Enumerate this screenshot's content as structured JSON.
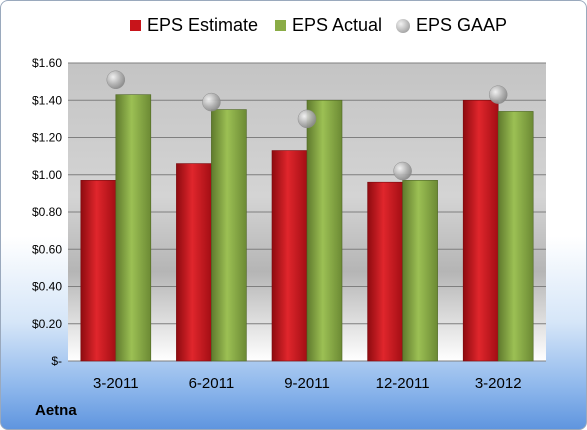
{
  "company_label": "Aetna",
  "colors": {
    "estimate": "#c8141a",
    "actual": "#8aac46",
    "gaap": "#a8a8a8"
  },
  "chart_data": {
    "type": "bar",
    "categories": [
      "3-2011",
      "6-2011",
      "9-2011",
      "12-2011",
      "3-2012"
    ],
    "series": [
      {
        "name": "EPS Estimate",
        "kind": "bar",
        "values": [
          0.97,
          1.06,
          1.13,
          0.96,
          1.4
        ]
      },
      {
        "name": "EPS Actual",
        "kind": "bar",
        "values": [
          1.43,
          1.35,
          1.4,
          0.97,
          1.34
        ]
      },
      {
        "name": "EPS GAAP",
        "kind": "bubble",
        "values": [
          1.51,
          1.39,
          1.3,
          1.02,
          1.43
        ]
      }
    ],
    "ylim": [
      0,
      1.6
    ],
    "yticks": [
      0,
      0.2,
      0.4,
      0.6,
      0.8,
      1.0,
      1.2,
      1.4,
      1.6
    ],
    "ytick_labels": [
      "$-",
      "$0.20",
      "$0.40",
      "$0.60",
      "$0.80",
      "$1.00",
      "$1.20",
      "$1.40",
      "$1.60"
    ],
    "grid": true,
    "legend_position": "top",
    "title": "",
    "xlabel": "",
    "ylabel": ""
  }
}
